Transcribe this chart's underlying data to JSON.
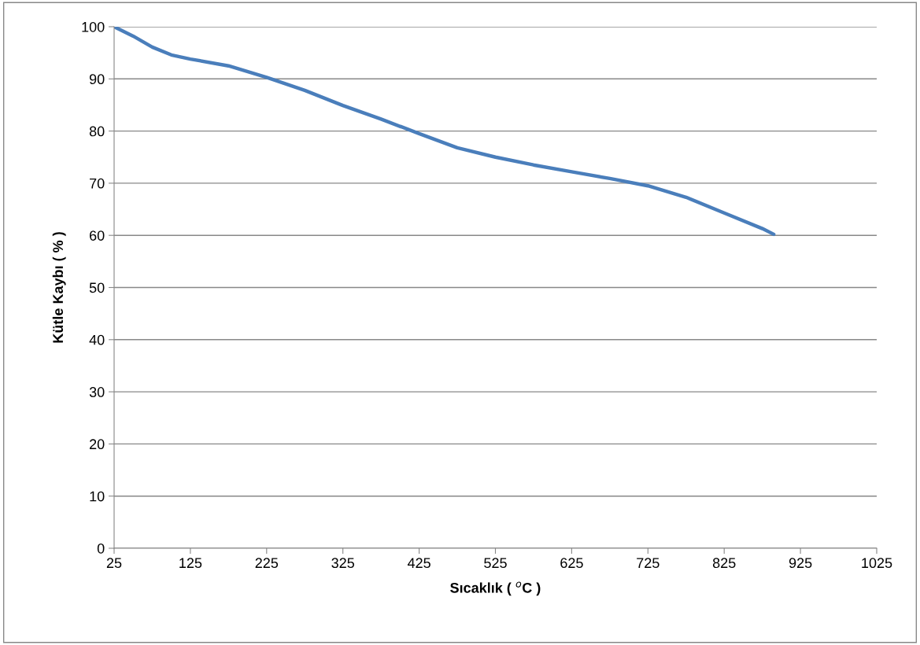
{
  "chart_data": {
    "type": "line",
    "xlabel": "Sıcaklık ( $^{o}$C )",
    "ylabel": "Kütle Kaybı ( % )",
    "x": [
      25,
      50,
      75,
      100,
      125,
      175,
      225,
      275,
      325,
      375,
      425,
      475,
      525,
      575,
      625,
      675,
      725,
      775,
      825,
      875,
      890
    ],
    "series": [
      {
        "color": "#4a7ebb",
        "values": [
          100,
          98.2,
          96.1,
          94.6,
          93.8,
          92.5,
          90.3,
          87.8,
          84.9,
          82.3,
          79.5,
          76.8,
          75.0,
          73.5,
          72.2,
          70.9,
          69.5,
          67.3,
          64.3,
          61.3,
          60.2
        ]
      }
    ],
    "xlim": [
      25,
      1025
    ],
    "xticks": [
      25,
      125,
      225,
      325,
      425,
      525,
      625,
      725,
      825,
      925,
      1025
    ],
    "ylim": [
      0,
      100
    ],
    "yticks": [
      0,
      10,
      20,
      30,
      40,
      50,
      60,
      70,
      80,
      90,
      100
    ],
    "grid": "y",
    "marker": "none",
    "line_style": "solid"
  }
}
